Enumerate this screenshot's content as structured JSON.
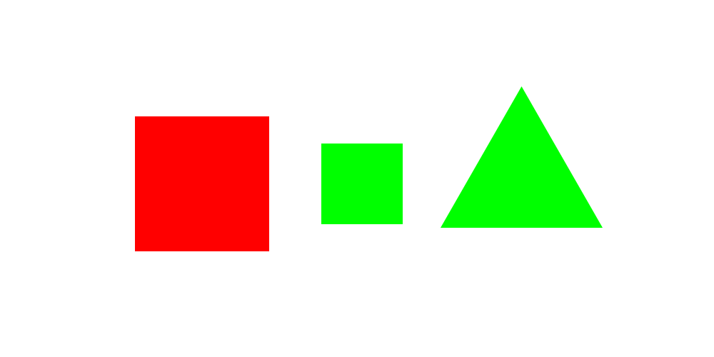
{
  "background_color": "#ffffff",
  "shapes": [
    {
      "kind": "square",
      "color": "#ff0000"
    },
    {
      "kind": "square",
      "color": "#00ff00"
    },
    {
      "kind": "triangle",
      "color": "#00ff00"
    }
  ]
}
